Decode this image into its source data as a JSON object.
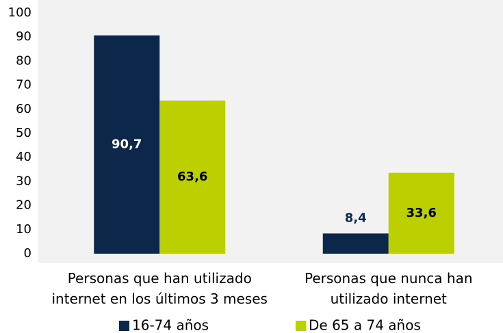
{
  "chart_data": {
    "type": "bar",
    "categories": [
      "Personas que han utilizado internet en los últimos 3 meses",
      "Personas que nunca han utilizado internet"
    ],
    "series": [
      {
        "name": "16-74 años",
        "color": "#0c2749",
        "values": [
          90.7,
          8.4
        ],
        "value_labels": [
          "90,7",
          "8,4"
        ]
      },
      {
        "name": "De 65 a 74 años",
        "color": "#bccf00",
        "values": [
          63.6,
          33.6
        ],
        "value_labels": [
          "63,6",
          "33,6"
        ]
      }
    ],
    "ylim": [
      0,
      100
    ],
    "yticks": [
      0,
      10,
      20,
      30,
      40,
      50,
      60,
      70,
      80,
      90,
      100
    ],
    "grid": false
  }
}
